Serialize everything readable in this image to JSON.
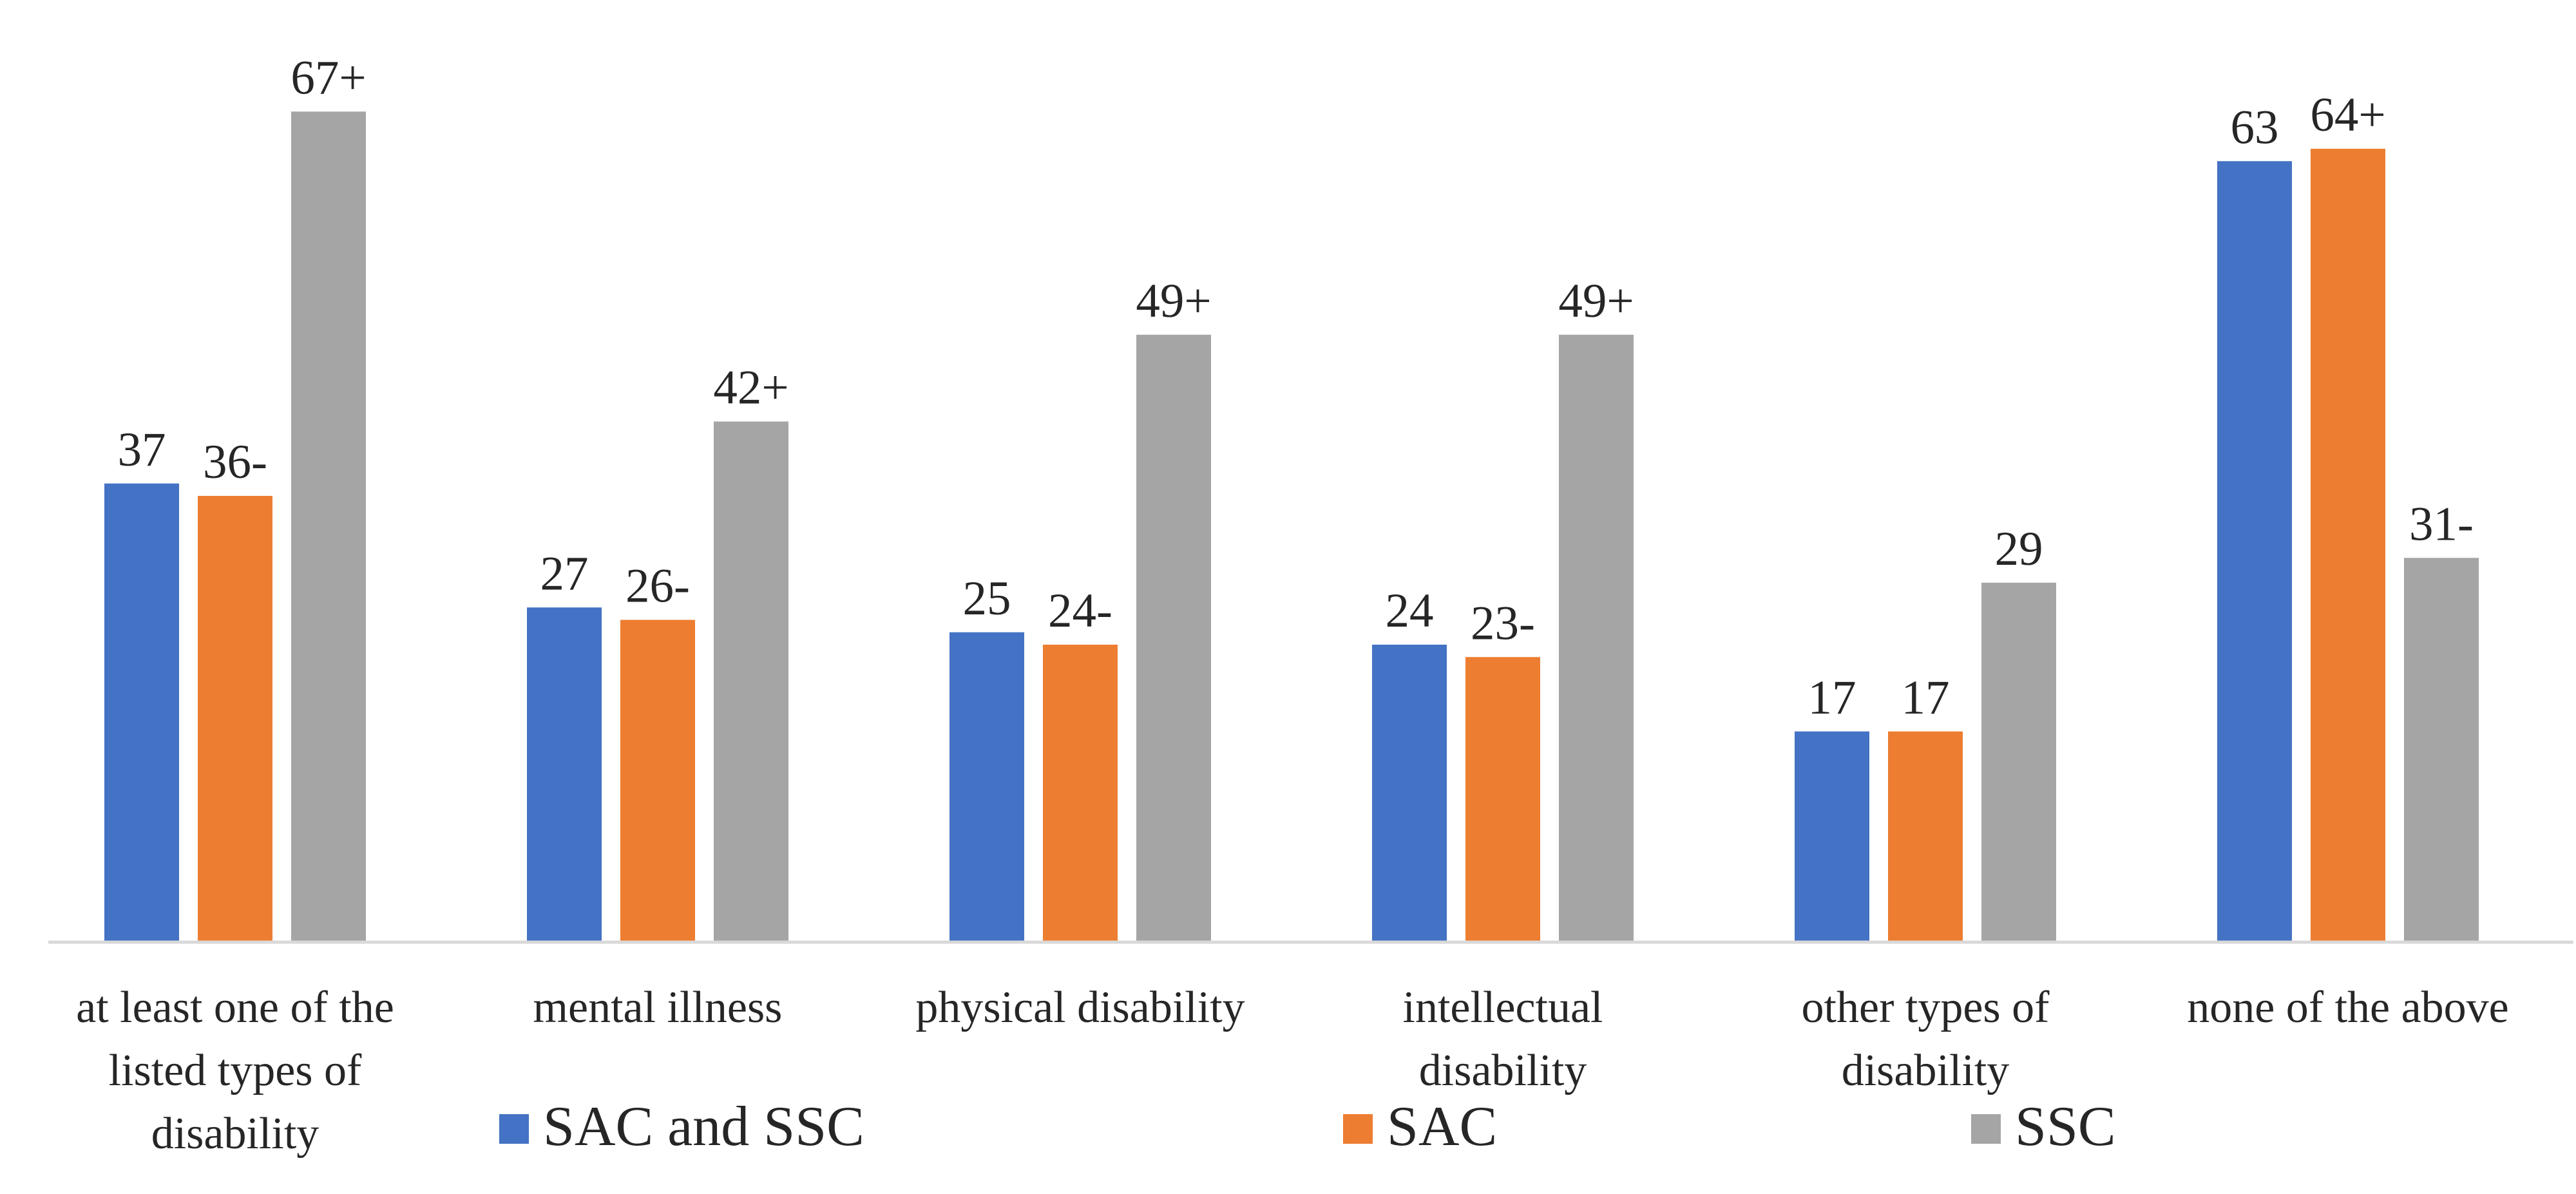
{
  "chart_data": {
    "type": "bar",
    "title": "",
    "xlabel": "",
    "ylabel": "",
    "ylim": [
      0,
      67
    ],
    "grid": false,
    "legend_position": "bottom",
    "categories": [
      [
        "at least one of the",
        "listed types of",
        "disability"
      ],
      [
        "mental illness"
      ],
      [
        "physical disability"
      ],
      [
        "intellectual",
        "disability"
      ],
      [
        "other types of",
        "disability"
      ],
      [
        "none of the above"
      ]
    ],
    "series": [
      {
        "name": "SAC and SSC",
        "color": "#4472C4",
        "values": [
          37,
          27,
          25,
          24,
          17,
          63
        ],
        "labels": [
          "37",
          "27",
          "25",
          "24",
          "17",
          "63"
        ]
      },
      {
        "name": "SAC",
        "color": "#ED7D31",
        "values": [
          36,
          26,
          24,
          23,
          17,
          64
        ],
        "labels": [
          "36-",
          "26-",
          "24-",
          "23-",
          "17",
          "64+"
        ]
      },
      {
        "name": "SSC",
        "color": "#A5A5A5",
        "values": [
          67,
          42,
          49,
          49,
          29,
          31
        ],
        "labels": [
          "67+",
          "42+",
          "49+",
          "49+",
          "29",
          "31-"
        ]
      }
    ],
    "axis_color": "#D9D9D9"
  }
}
